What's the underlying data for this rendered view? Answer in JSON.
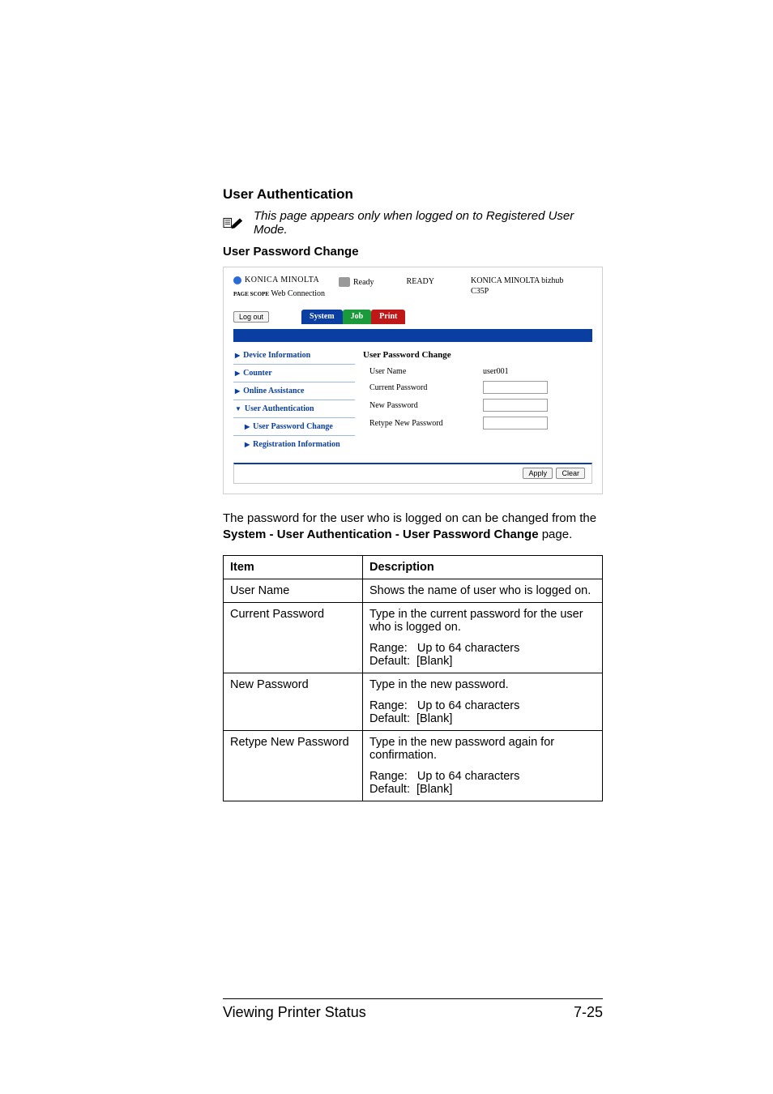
{
  "headings": {
    "section": "User Authentication",
    "sub": "User Password Change"
  },
  "note": {
    "text": "This page appears only when logged on to Registered User Mode."
  },
  "screenshot": {
    "brand": {
      "line1": "KONICA MINOLTA",
      "line2_prefix": "PAGE SCOPE",
      "line2": "Web Connection"
    },
    "status": {
      "ready_small": "Ready",
      "ready_big": "READY"
    },
    "model": {
      "line1": "KONICA MINOLTA bizhub",
      "line2": "C35P"
    },
    "logout": "Log out",
    "tabs": {
      "system": "System",
      "job": "Job",
      "print": "Print"
    },
    "sidebar": [
      {
        "label": "Device Information",
        "marker": "▶",
        "sub": false
      },
      {
        "label": "Counter",
        "marker": "▶",
        "sub": false
      },
      {
        "label": "Online Assistance",
        "marker": "▶",
        "sub": false
      },
      {
        "label": "User Authentication",
        "marker": "▼",
        "sub": false
      },
      {
        "label": "User Password Change",
        "marker": "▶",
        "sub": true
      },
      {
        "label": "Registration Information",
        "marker": "▶",
        "sub": true
      }
    ],
    "form": {
      "title": "User Password Change",
      "rows": {
        "user_name_label": "User Name",
        "user_name_value": "user001",
        "current_pw_label": "Current Password",
        "new_pw_label": "New Password",
        "retype_pw_label": "Retype New Password"
      }
    },
    "buttons": {
      "apply": "Apply",
      "clear": "Clear"
    }
  },
  "paragraph": {
    "pre": "The password for the user who is logged on can be changed from the ",
    "bold": "System - User Authentication - User Password Change",
    "post": " page."
  },
  "table": {
    "head": {
      "item": "Item",
      "desc": "Description"
    },
    "rows": [
      {
        "item": "User Name",
        "desc_lines": [
          "Shows the name of user who is logged on."
        ]
      },
      {
        "item": "Current Password",
        "desc_lines": [
          "Type in the current password for the user who is logged on.",
          "Range:   Up to 64 characters\nDefault:  [Blank]"
        ]
      },
      {
        "item": "New Password",
        "desc_lines": [
          "Type in the new password.",
          "Range:   Up to 64 characters\nDefault:  [Blank]"
        ]
      },
      {
        "item": "Retype New Password",
        "desc_lines": [
          "Type in the new password again for confirmation.",
          "Range:   Up to 64 characters\nDefault:  [Blank]"
        ]
      }
    ]
  },
  "footer": {
    "left": "Viewing Printer Status",
    "right": "7-25"
  },
  "colors": {
    "blue": "#0a3ea0",
    "green": "#1a9a3a",
    "red": "#c01818"
  }
}
